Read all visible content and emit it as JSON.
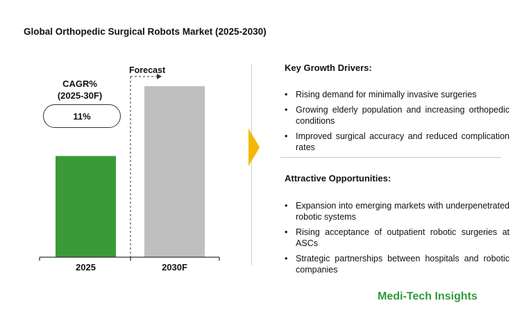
{
  "title": "Global Orthopedic Surgical Robots Market (2025-2030)",
  "chart_data": {
    "type": "bar",
    "categories": [
      "2025",
      "2030F"
    ],
    "values": [
      100,
      169
    ],
    "colors": [
      "#3a9a37",
      "#bfbfbf"
    ],
    "forecast_label": "Forecast",
    "cagr_label": "CAGR%",
    "cagr_period": "(2025-30F)",
    "cagr_value": "11%"
  },
  "growth_drivers": {
    "heading": "Key Growth Drivers:",
    "items": [
      "Rising demand for minimally invasive surgeries",
      "Growing elderly population and increasing orthopedic conditions",
      "Improved surgical accuracy and reduced complication rates"
    ]
  },
  "opportunities": {
    "heading": "Attractive Opportunities:",
    "items": [
      "Expansion into emerging markets with underpenetrated robotic systems",
      "Rising acceptance of outpatient robotic surgeries at ASCs",
      "Strategic partnerships between hospitals and robotic companies"
    ]
  },
  "logo": {
    "text": "Medi-Tech Insights",
    "color": "#2e9b3a"
  },
  "colors": {
    "arrow": "#f5b800"
  }
}
